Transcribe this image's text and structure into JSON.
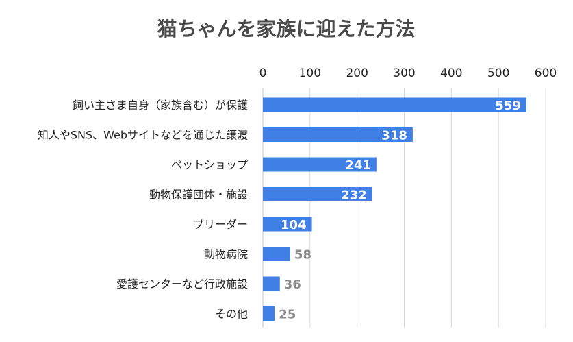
{
  "chart_data": {
    "type": "bar",
    "orientation": "horizontal",
    "title": "猫ちゃんを家族に迎えた方法",
    "categories": [
      "飼い主さま自身（家族含む）が保護",
      "知人やSNS、Webサイトなどを通じた譲渡",
      "ペットショップ",
      "動物保護団体・施設",
      "ブリーダー",
      "動物病院",
      "愛護センターなど行政施設",
      "その他"
    ],
    "values": [
      559,
      318,
      241,
      232,
      104,
      58,
      36,
      25
    ],
    "xlim": [
      0,
      600
    ],
    "ticks": [
      "0",
      "100",
      "200",
      "300",
      "400",
      "500",
      "600"
    ],
    "tick_positions": "top",
    "grid": true,
    "legend": "none",
    "bar_color": "#3f7fe6",
    "label_inside_color": "#ffffff",
    "label_outside_color": "#8c8c8c",
    "title_color": "#4a4a4a"
  }
}
